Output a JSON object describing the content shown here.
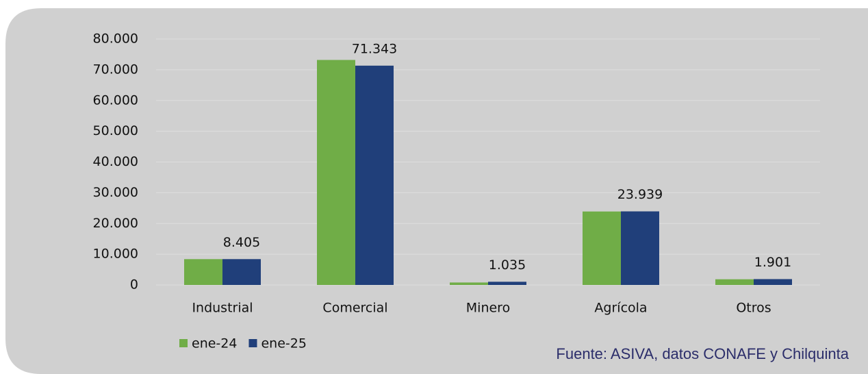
{
  "chart_data": {
    "type": "bar",
    "categories": [
      "Industrial",
      "Comercial",
      "Minero",
      "Agrícola",
      "Otros"
    ],
    "series": [
      {
        "name": "ene-24",
        "color": "#70ad47",
        "values": [
          8400,
          73200,
          800,
          23900,
          1850
        ]
      },
      {
        "name": "ene-25",
        "color": "#203f7a",
        "values": [
          8405,
          71343,
          1035,
          23939,
          1901
        ],
        "value_labels": [
          "8.405",
          "71.343",
          "1.035",
          "23.939",
          "1.901"
        ]
      }
    ],
    "ylim": [
      0,
      80000
    ],
    "yticks": [
      0,
      {
        "value": 10000,
        "label": "10.000"
      },
      {
        "value": 20000,
        "label": "20.000"
      },
      {
        "value": 30000,
        "label": "30.000"
      },
      {
        "value": 40000,
        "label": "40.000"
      },
      {
        "value": 50000,
        "label": "50.000"
      },
      {
        "value": 60000,
        "label": "60.000"
      },
      {
        "value": 70000,
        "label": "70.000"
      },
      {
        "value": 80000,
        "label": "80.000"
      }
    ],
    "grid": true,
    "legend": "bottom-left",
    "source": "Fuente: ASIVA, datos CONAFE y Chilquinta"
  }
}
